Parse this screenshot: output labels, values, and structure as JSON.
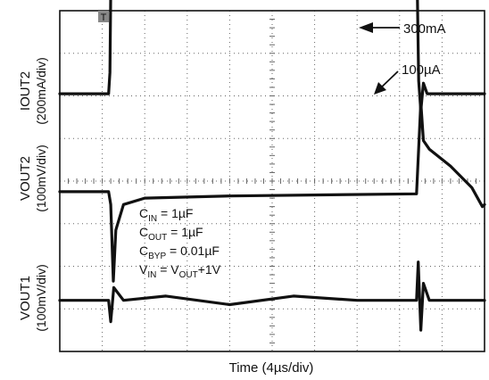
{
  "chart_data": {
    "type": "line",
    "xlabel": "Time (4µs/div)",
    "x_divisions": 10,
    "y_divisions": 8,
    "trigger_marker": "T",
    "channels": [
      {
        "name": "IOUT2",
        "scale_label": "(200mA/div)",
        "baseline_div": 6.05,
        "points": [
          [
            0,
            0
          ],
          [
            1.15,
            0
          ],
          [
            1.18,
            0.5
          ],
          [
            1.22,
            4.5
          ],
          [
            1.26,
            4.7
          ],
          [
            1.3,
            3.2
          ],
          [
            1.45,
            3.8
          ],
          [
            1.7,
            3.65
          ],
          [
            3,
            3.6
          ],
          [
            6,
            3.6
          ],
          [
            8.4,
            3.6
          ],
          [
            8.45,
            0.3
          ],
          [
            8.5,
            -0.4
          ],
          [
            8.56,
            0.25
          ],
          [
            8.65,
            0
          ],
          [
            10,
            0
          ]
        ]
      },
      {
        "name": "VOUT2",
        "scale_label": "(100mV/div)",
        "baseline_div": 3.75,
        "points": [
          [
            0,
            0
          ],
          [
            1.15,
            0
          ],
          [
            1.2,
            -0.3
          ],
          [
            1.26,
            -2.1
          ],
          [
            1.32,
            -0.9
          ],
          [
            1.5,
            -0.3
          ],
          [
            2,
            -0.15
          ],
          [
            4,
            -0.1
          ],
          [
            8.4,
            -0.05
          ],
          [
            8.44,
            0.8
          ],
          [
            8.5,
            2.1
          ],
          [
            8.56,
            1.2
          ],
          [
            8.7,
            1.0
          ],
          [
            9.2,
            0.6
          ],
          [
            9.7,
            0.1
          ],
          [
            9.95,
            -0.35
          ],
          [
            10,
            -0.3
          ]
        ]
      },
      {
        "name": "VOUT1",
        "scale_label": "(100mV/div)",
        "baseline_div": 1.2,
        "points": [
          [
            0,
            0
          ],
          [
            1.15,
            0
          ],
          [
            1.2,
            -0.5
          ],
          [
            1.27,
            0.3
          ],
          [
            1.5,
            0
          ],
          [
            2.5,
            0.1
          ],
          [
            4,
            -0.1
          ],
          [
            5.5,
            0.1
          ],
          [
            7,
            0
          ],
          [
            8.4,
            0
          ],
          [
            8.44,
            0.9
          ],
          [
            8.5,
            -0.7
          ],
          [
            8.56,
            0.4
          ],
          [
            8.7,
            0
          ],
          [
            10,
            0
          ]
        ]
      }
    ],
    "annotations": [
      "300mA",
      "100µA"
    ],
    "conditions": [
      {
        "base": "C",
        "sub": "IN",
        "rest": " = 1µF"
      },
      {
        "base": "C",
        "sub": "OUT",
        "rest": " = 1µF"
      },
      {
        "base": "C",
        "sub": "BYP",
        "rest": " = 0.01µF"
      },
      {
        "base": "V",
        "sub": "IN",
        "rest": " = V",
        "sub2": "OUT",
        "rest2": "+1V"
      }
    ]
  },
  "colors": {
    "trace": "#111111",
    "grid_dot": "#666666",
    "frame": "#111111"
  }
}
